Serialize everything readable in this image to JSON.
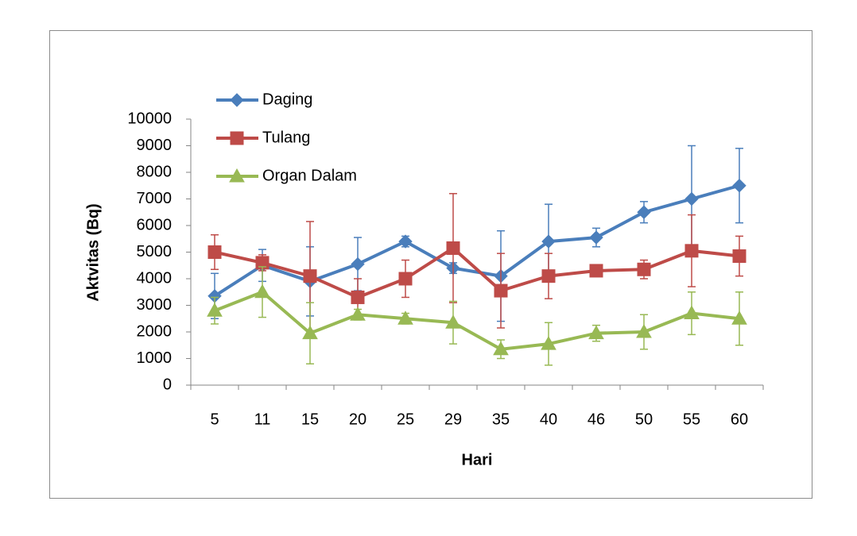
{
  "chart_data": {
    "type": "line",
    "x_label": "Hari",
    "y_label": "Aktvitas (Bq)",
    "categories": [
      "5",
      "11",
      "15",
      "20",
      "25",
      "29",
      "35",
      "40",
      "46",
      "50",
      "55",
      "60"
    ],
    "ylim": [
      0,
      10000
    ],
    "yticks": [
      0,
      1000,
      2000,
      3000,
      4000,
      5000,
      6000,
      7000,
      8000,
      9000,
      10000
    ],
    "grid": false,
    "legend": "upper-left",
    "series": [
      {
        "name": "Daging",
        "color": "#4a7ebb",
        "marker": "diamond",
        "values": [
          3350,
          4500,
          3900,
          4550,
          5400,
          4400,
          4100,
          5400,
          5550,
          6500,
          7000,
          7500
        ],
        "errors": [
          850,
          600,
          1300,
          1000,
          200,
          200,
          1700,
          1400,
          350,
          400,
          2000,
          1400
        ]
      },
      {
        "name": "Tulang",
        "color": "#be4b48",
        "marker": "square",
        "values": [
          5000,
          4600,
          4100,
          3300,
          4000,
          5150,
          3550,
          4100,
          4300,
          4350,
          5050,
          4850
        ],
        "errors": [
          650,
          300,
          2050,
          700,
          700,
          2050,
          1400,
          850,
          150,
          350,
          1350,
          750
        ]
      },
      {
        "name": "Organ Dalam",
        "color": "#98b954",
        "marker": "triangle",
        "values": [
          2800,
          3500,
          1950,
          2650,
          2500,
          2350,
          1350,
          1550,
          1950,
          2000,
          2700,
          2500
        ],
        "errors": [
          500,
          950,
          1150,
          200,
          200,
          800,
          350,
          800,
          300,
          650,
          800,
          1000
        ]
      }
    ]
  }
}
